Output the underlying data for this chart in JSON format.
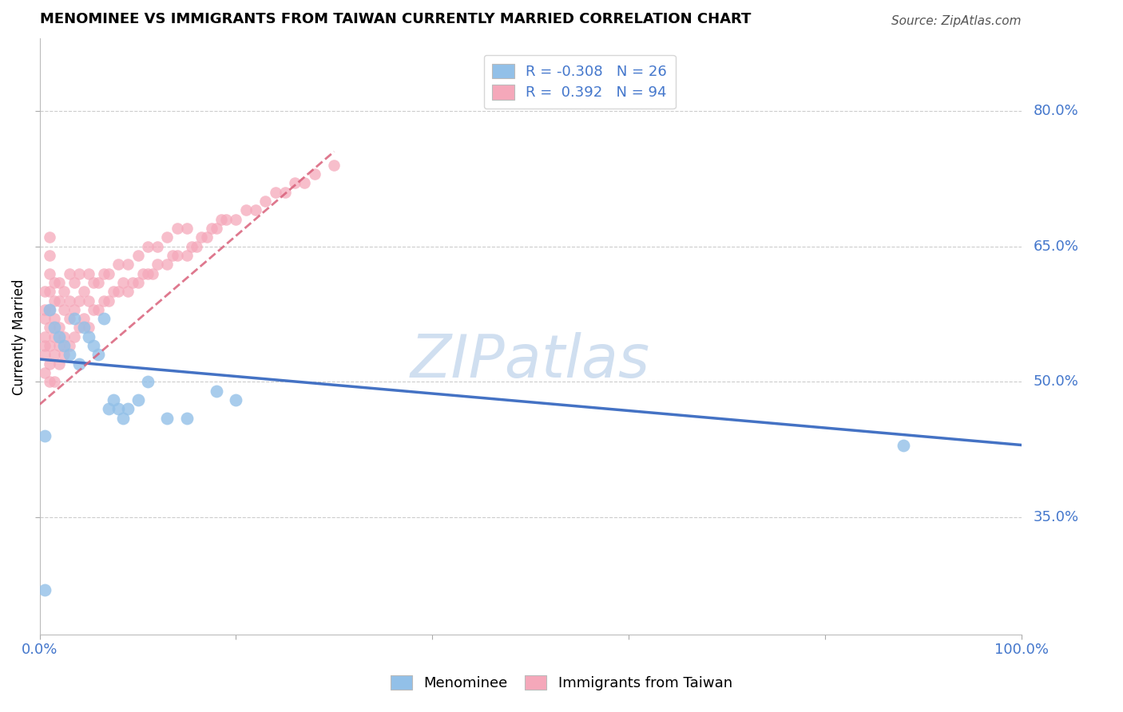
{
  "title": "MENOMINEE VS IMMIGRANTS FROM TAIWAN CURRENTLY MARRIED CORRELATION CHART",
  "source": "Source: ZipAtlas.com",
  "ylabel": "Currently Married",
  "xlim": [
    0.0,
    1.0
  ],
  "ylim": [
    0.22,
    0.88
  ],
  "xtick_positions": [
    0.0,
    0.2,
    0.4,
    0.6,
    0.8,
    1.0
  ],
  "xticklabels": [
    "0.0%",
    "",
    "",
    "",
    "",
    "100.0%"
  ],
  "ytick_positions": [
    0.35,
    0.5,
    0.65,
    0.8
  ],
  "ytick_labels": [
    "35.0%",
    "50.0%",
    "65.0%",
    "80.0%"
  ],
  "r_menominee": -0.308,
  "n_menominee": 26,
  "r_taiwan": 0.392,
  "n_taiwan": 94,
  "blue_color": "#92C0E8",
  "pink_color": "#F5A8BA",
  "blue_line_color": "#4472C4",
  "pink_line_color": "#D9607A",
  "watermark": "ZIPatlas",
  "watermark_color": "#D0DFF0",
  "menominee_x": [
    0.005,
    0.01,
    0.015,
    0.02,
    0.025,
    0.03,
    0.035,
    0.04,
    0.045,
    0.05,
    0.055,
    0.06,
    0.065,
    0.07,
    0.075,
    0.08,
    0.085,
    0.09,
    0.1,
    0.11,
    0.13,
    0.15,
    0.18,
    0.2,
    0.005,
    0.88
  ],
  "menominee_y": [
    0.44,
    0.58,
    0.56,
    0.55,
    0.54,
    0.53,
    0.57,
    0.52,
    0.56,
    0.55,
    0.54,
    0.53,
    0.57,
    0.47,
    0.48,
    0.47,
    0.46,
    0.47,
    0.48,
    0.5,
    0.46,
    0.46,
    0.49,
    0.48,
    0.27,
    0.43
  ],
  "taiwan_x": [
    0.005,
    0.005,
    0.005,
    0.005,
    0.005,
    0.005,
    0.005,
    0.01,
    0.01,
    0.01,
    0.01,
    0.01,
    0.01,
    0.01,
    0.01,
    0.01,
    0.015,
    0.015,
    0.015,
    0.015,
    0.015,
    0.015,
    0.02,
    0.02,
    0.02,
    0.02,
    0.02,
    0.025,
    0.025,
    0.025,
    0.025,
    0.03,
    0.03,
    0.03,
    0.03,
    0.035,
    0.035,
    0.035,
    0.04,
    0.04,
    0.04,
    0.045,
    0.045,
    0.05,
    0.05,
    0.05,
    0.055,
    0.055,
    0.06,
    0.06,
    0.065,
    0.065,
    0.07,
    0.07,
    0.075,
    0.08,
    0.08,
    0.085,
    0.09,
    0.09,
    0.095,
    0.1,
    0.1,
    0.105,
    0.11,
    0.11,
    0.115,
    0.12,
    0.12,
    0.13,
    0.13,
    0.135,
    0.14,
    0.14,
    0.15,
    0.15,
    0.155,
    0.16,
    0.165,
    0.17,
    0.175,
    0.18,
    0.185,
    0.19,
    0.2,
    0.21,
    0.22,
    0.23,
    0.24,
    0.25,
    0.26,
    0.27,
    0.28,
    0.3
  ],
  "taiwan_y": [
    0.51,
    0.53,
    0.54,
    0.55,
    0.57,
    0.58,
    0.6,
    0.5,
    0.52,
    0.54,
    0.56,
    0.58,
    0.6,
    0.62,
    0.64,
    0.66,
    0.5,
    0.53,
    0.55,
    0.57,
    0.59,
    0.61,
    0.52,
    0.54,
    0.56,
    0.59,
    0.61,
    0.53,
    0.55,
    0.58,
    0.6,
    0.54,
    0.57,
    0.59,
    0.62,
    0.55,
    0.58,
    0.61,
    0.56,
    0.59,
    0.62,
    0.57,
    0.6,
    0.56,
    0.59,
    0.62,
    0.58,
    0.61,
    0.58,
    0.61,
    0.59,
    0.62,
    0.59,
    0.62,
    0.6,
    0.6,
    0.63,
    0.61,
    0.6,
    0.63,
    0.61,
    0.61,
    0.64,
    0.62,
    0.62,
    0.65,
    0.62,
    0.63,
    0.65,
    0.63,
    0.66,
    0.64,
    0.64,
    0.67,
    0.64,
    0.67,
    0.65,
    0.65,
    0.66,
    0.66,
    0.67,
    0.67,
    0.68,
    0.68,
    0.68,
    0.69,
    0.69,
    0.7,
    0.71,
    0.71,
    0.72,
    0.72,
    0.73,
    0.74
  ],
  "men_line_x": [
    0.0,
    1.0
  ],
  "men_line_y": [
    0.525,
    0.43
  ],
  "tai_line_x": [
    0.0,
    0.3
  ],
  "tai_line_y": [
    0.475,
    0.755
  ]
}
